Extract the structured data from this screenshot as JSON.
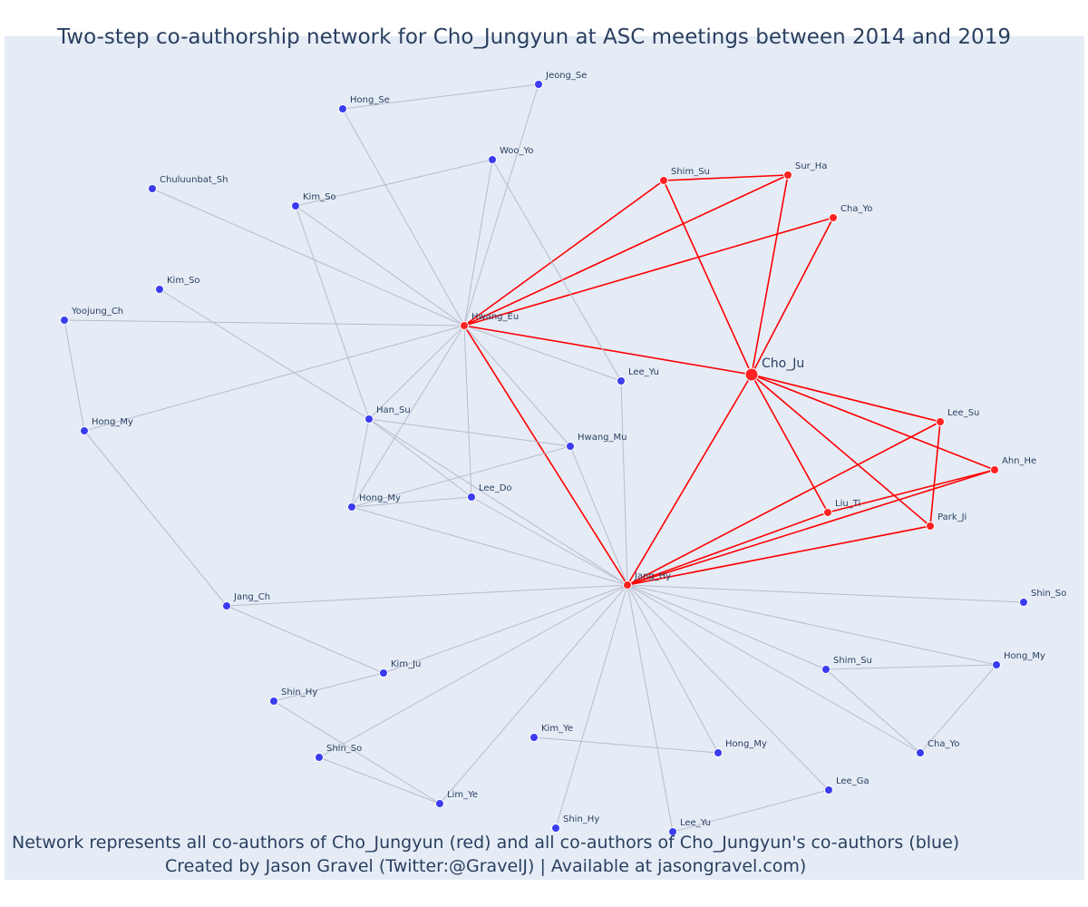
{
  "title": "Two-step co-authorship network for Cho_Jungyun at ASC meetings between 2014 and 2019",
  "caption": {
    "line1": "Network represents all co-authors of Cho_Jungyun (red) and all co-authors of Cho_Jungyun's co-authors (blue)",
    "line2": "Created by Jason Gravel (Twitter:@GravelJ) | Available at jasongravel.com)"
  },
  "colors": {
    "background": "#e5ecf6",
    "primary_edge": "#ff0000",
    "secondary_edge": "#b8bccc",
    "primary_node": "#ff2222",
    "secondary_node": "#3b3bf0",
    "text": "#2a3f5f"
  },
  "nodes": [
    {
      "id": "cho",
      "label": "Cho_Ju",
      "type": "focus"
    },
    {
      "id": "hwang_eu",
      "label": "Hwang_Eu",
      "type": "primary"
    },
    {
      "id": "jang_hy",
      "label": "Jang_Hy",
      "type": "primary"
    },
    {
      "id": "shim_su_r",
      "label": "Shim_Su",
      "type": "primary"
    },
    {
      "id": "sur_ha",
      "label": "Sur_Ha",
      "type": "primary"
    },
    {
      "id": "cha_yo_r",
      "label": "Cha_Yo",
      "type": "primary"
    },
    {
      "id": "lee_su",
      "label": "Lee_Su",
      "type": "primary"
    },
    {
      "id": "ahn_he",
      "label": "Ahn_He",
      "type": "primary"
    },
    {
      "id": "liu_ti",
      "label": "Liu_Ti",
      "type": "primary"
    },
    {
      "id": "park_ji",
      "label": "Park_Ji",
      "type": "primary"
    },
    {
      "id": "jeong_se",
      "label": "Jeong_Se",
      "type": "secondary"
    },
    {
      "id": "hong_se",
      "label": "Hong_Se",
      "type": "secondary"
    },
    {
      "id": "woo_yo",
      "label": "Woo_Yo",
      "type": "secondary"
    },
    {
      "id": "chuluunbat_sh",
      "label": "Chuluunbat_Sh",
      "type": "secondary"
    },
    {
      "id": "kim_so_1",
      "label": "Kim_So",
      "type": "secondary"
    },
    {
      "id": "kim_so_2",
      "label": "Kim_So",
      "type": "secondary"
    },
    {
      "id": "yoojung_ch",
      "label": "Yoojung_Ch",
      "type": "secondary"
    },
    {
      "id": "lee_yu_1",
      "label": "Lee_Yu",
      "type": "secondary"
    },
    {
      "id": "hong_my_1",
      "label": "Hong_My",
      "type": "secondary"
    },
    {
      "id": "han_su",
      "label": "Han_Su",
      "type": "secondary"
    },
    {
      "id": "hwang_mu",
      "label": "Hwang_Mu",
      "type": "secondary"
    },
    {
      "id": "lee_do",
      "label": "Lee_Do",
      "type": "secondary"
    },
    {
      "id": "hong_my_2",
      "label": "Hong_My",
      "type": "secondary"
    },
    {
      "id": "jang_ch",
      "label": "Jang_Ch",
      "type": "secondary"
    },
    {
      "id": "shin_so_1",
      "label": "Shin_So",
      "type": "secondary"
    },
    {
      "id": "hong_my_3",
      "label": "Hong_My",
      "type": "secondary"
    },
    {
      "id": "shim_su_b",
      "label": "Shim_Su",
      "type": "secondary"
    },
    {
      "id": "kim_ju",
      "label": "Kim_Ju",
      "type": "secondary"
    },
    {
      "id": "shin_hy_1",
      "label": "Shin_Hy",
      "type": "secondary"
    },
    {
      "id": "kim_ye",
      "label": "Kim_Ye",
      "type": "secondary"
    },
    {
      "id": "hong_my_4",
      "label": "Hong_My",
      "type": "secondary"
    },
    {
      "id": "cha_yo_b",
      "label": "Cha_Yo",
      "type": "secondary"
    },
    {
      "id": "shin_so_2",
      "label": "Shin_So",
      "type": "secondary"
    },
    {
      "id": "lee_ga",
      "label": "Lee_Ga",
      "type": "secondary"
    },
    {
      "id": "lim_ye",
      "label": "Lim_Ye",
      "type": "secondary"
    },
    {
      "id": "shin_hy_2",
      "label": "Shin_Hy",
      "type": "secondary"
    },
    {
      "id": "lee_yu_2",
      "label": "Lee_Yu",
      "type": "secondary"
    }
  ],
  "edges": [
    [
      "cho",
      "hwang_eu"
    ],
    [
      "cho",
      "jang_hy"
    ],
    [
      "cho",
      "shim_su_r"
    ],
    [
      "cho",
      "sur_ha"
    ],
    [
      "cho",
      "cha_yo_r"
    ],
    [
      "cho",
      "lee_su"
    ],
    [
      "cho",
      "ahn_he"
    ],
    [
      "cho",
      "liu_ti"
    ],
    [
      "cho",
      "park_ji"
    ],
    [
      "hwang_eu",
      "jang_hy"
    ],
    [
      "hwang_eu",
      "shim_su_r"
    ],
    [
      "hwang_eu",
      "sur_ha"
    ],
    [
      "hwang_eu",
      "cha_yo_r"
    ],
    [
      "shim_su_r",
      "sur_ha"
    ],
    [
      "jang_hy",
      "lee_su"
    ],
    [
      "jang_hy",
      "ahn_he"
    ],
    [
      "jang_hy",
      "liu_ti"
    ],
    [
      "jang_hy",
      "park_ji"
    ],
    [
      "lee_su",
      "park_ji"
    ],
    [
      "ahn_he",
      "liu_ti"
    ],
    [
      "jeong_se",
      "hong_se"
    ],
    [
      "jeong_se",
      "hwang_eu"
    ],
    [
      "hong_se",
      "hwang_eu"
    ],
    [
      "woo_yo",
      "kim_so_1"
    ],
    [
      "woo_yo",
      "hwang_eu"
    ],
    [
      "woo_yo",
      "lee_yu_1"
    ],
    [
      "chuluunbat_sh",
      "hwang_eu"
    ],
    [
      "kim_so_1",
      "hwang_eu"
    ],
    [
      "kim_so_1",
      "han_su"
    ],
    [
      "kim_so_2",
      "han_su"
    ],
    [
      "yoojung_ch",
      "hwang_eu"
    ],
    [
      "yoojung_ch",
      "hong_my_1"
    ],
    [
      "hong_my_1",
      "hwang_eu"
    ],
    [
      "hong_my_1",
      "jang_ch"
    ],
    [
      "hwang_eu",
      "lee_yu_1"
    ],
    [
      "hwang_eu",
      "hwang_mu"
    ],
    [
      "hwang_eu",
      "lee_do"
    ],
    [
      "hwang_eu",
      "hong_my_2"
    ],
    [
      "hwang_eu",
      "han_su"
    ],
    [
      "han_su",
      "hwang_mu"
    ],
    [
      "han_su",
      "lee_do"
    ],
    [
      "han_su",
      "hong_my_2"
    ],
    [
      "han_su",
      "jang_hy"
    ],
    [
      "hong_my_2",
      "hwang_mu"
    ],
    [
      "hong_my_2",
      "lee_do"
    ],
    [
      "hong_my_2",
      "jang_hy"
    ],
    [
      "lee_do",
      "jang_hy"
    ],
    [
      "hwang_mu",
      "jang_hy"
    ],
    [
      "lee_yu_1",
      "jang_hy"
    ],
    [
      "jang_ch",
      "jang_hy"
    ],
    [
      "jang_ch",
      "kim_ju"
    ],
    [
      "kim_ju",
      "jang_hy"
    ],
    [
      "kim_ju",
      "shin_hy_1"
    ],
    [
      "shin_hy_1",
      "lim_ye"
    ],
    [
      "shin_so_2",
      "lim_ye"
    ],
    [
      "shin_so_2",
      "jang_hy"
    ],
    [
      "lim_ye",
      "jang_hy"
    ],
    [
      "kim_ye",
      "hong_my_4"
    ],
    [
      "shin_hy_2",
      "jang_hy"
    ],
    [
      "lee_yu_2",
      "jang_hy"
    ],
    [
      "lee_yu_2",
      "lee_ga"
    ],
    [
      "lee_ga",
      "jang_hy"
    ],
    [
      "hong_my_4",
      "jang_hy"
    ],
    [
      "shim_su_b",
      "jang_hy"
    ],
    [
      "shim_su_b",
      "hong_my_3"
    ],
    [
      "shim_su_b",
      "cha_yo_b"
    ],
    [
      "hong_my_3",
      "cha_yo_b"
    ],
    [
      "hong_my_3",
      "jang_hy"
    ],
    [
      "cha_yo_b",
      "jang_hy"
    ],
    [
      "shin_so_1",
      "jang_hy"
    ]
  ]
}
